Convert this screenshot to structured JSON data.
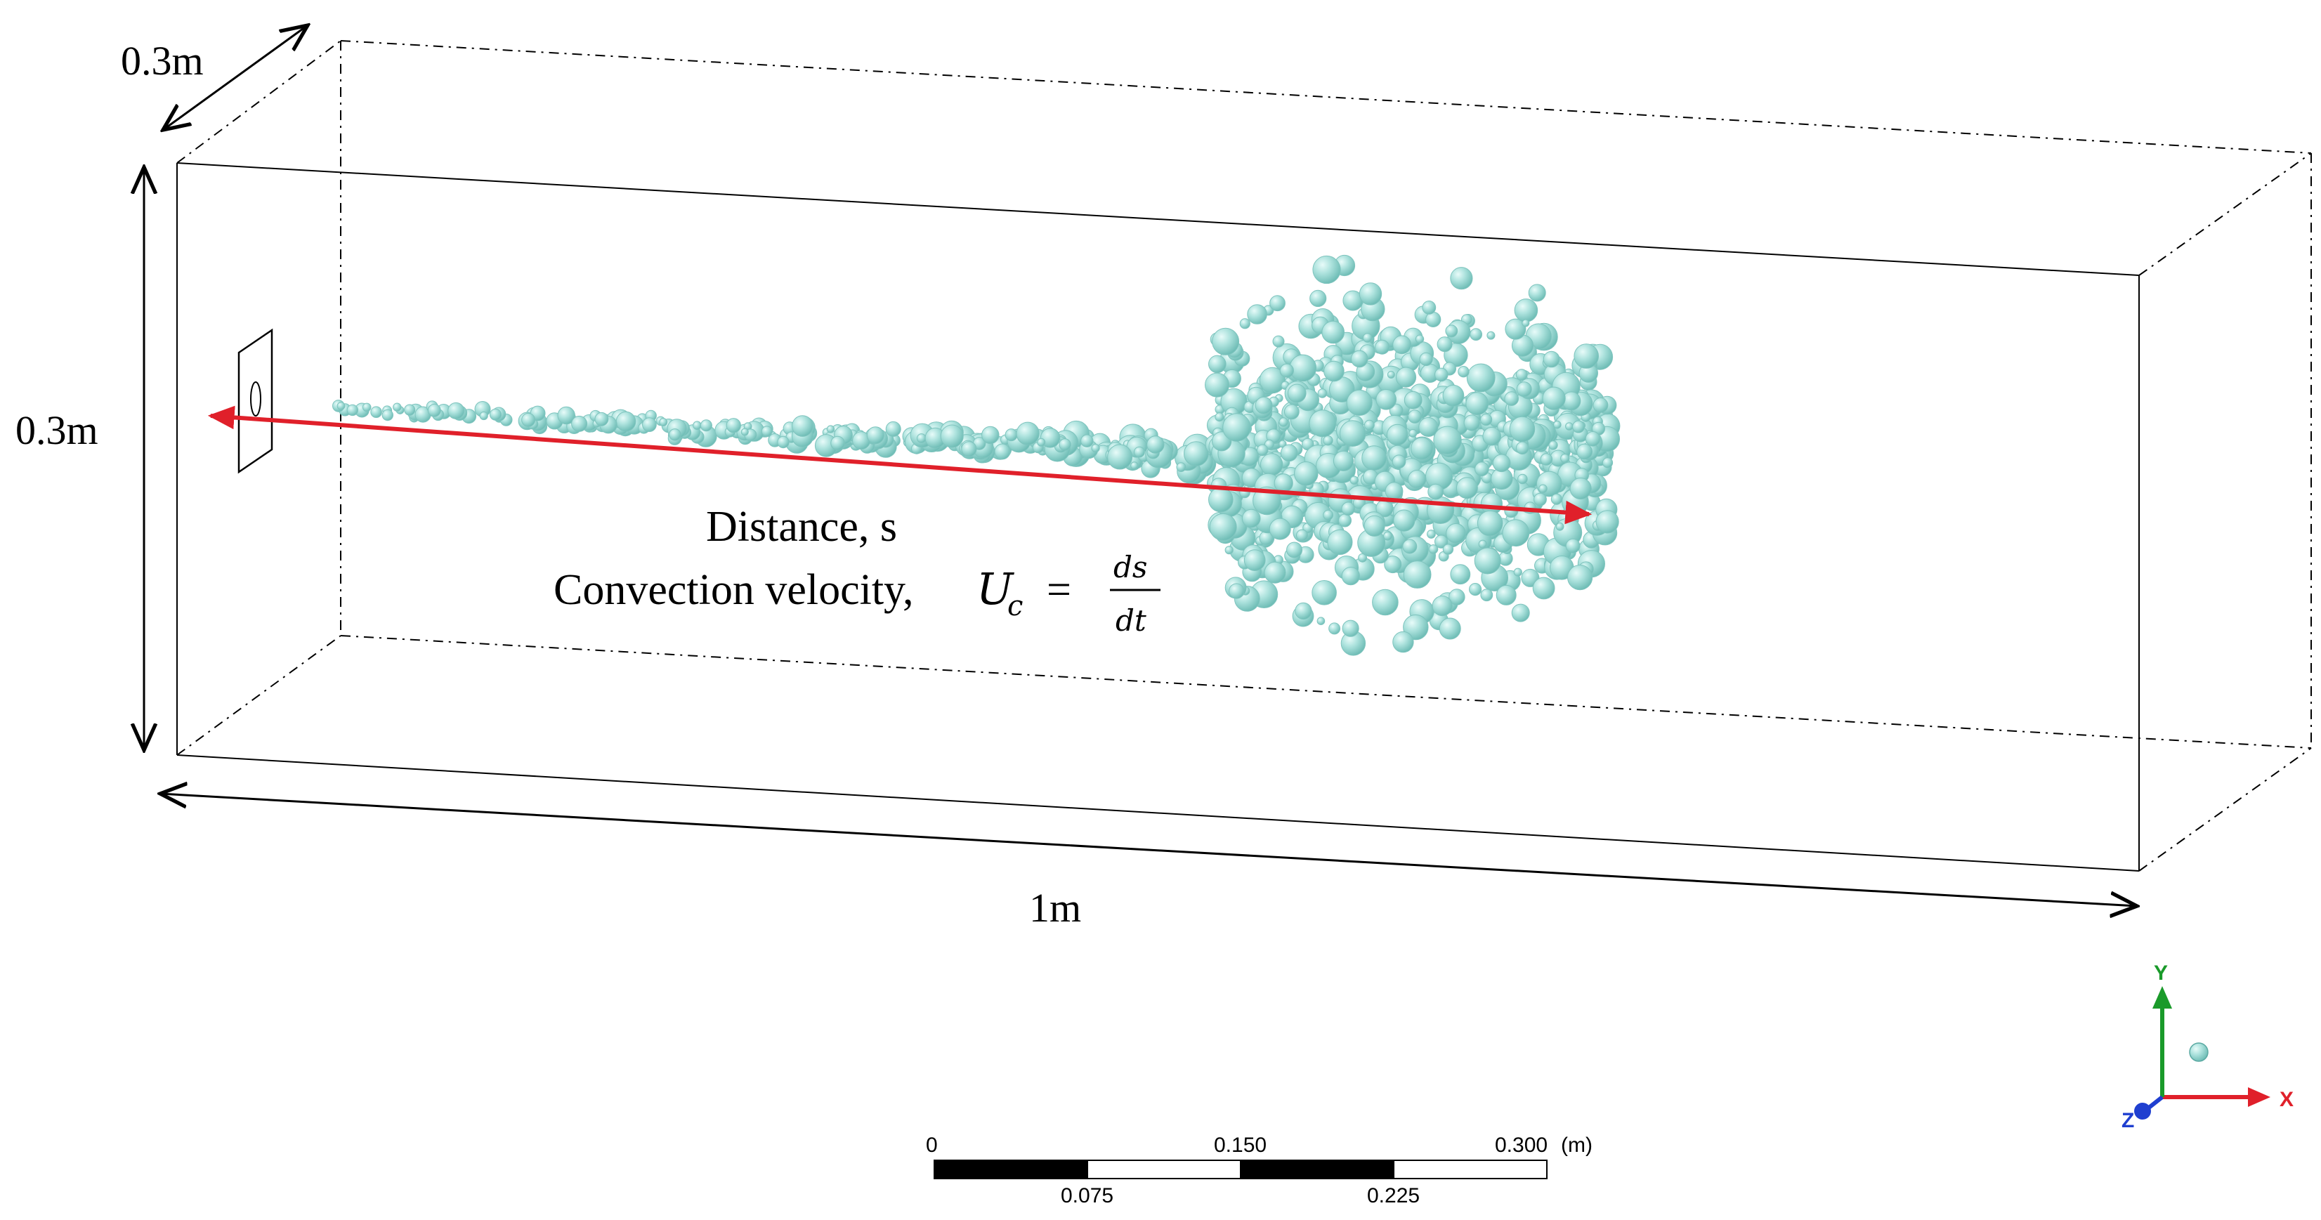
{
  "dimensions": {
    "depth_label": "0.3m",
    "height_label": "0.3m",
    "length_label": "1m"
  },
  "annotation": {
    "distance_label": "Distance, s",
    "velocity_prefix": "Convection velocity, ",
    "velocity_symbol": "U",
    "velocity_subscript": "c",
    "equals": "=",
    "fraction_numerator": "ds",
    "fraction_denominator": "dt"
  },
  "scale_bar": {
    "top_labels": [
      "0",
      "0.150",
      "0.300"
    ],
    "unit": "(m)",
    "bottom_labels": [
      "0.075",
      "0.225"
    ]
  },
  "axes": {
    "x_label": "X",
    "y_label": "Y",
    "z_label": "Z",
    "x_color": "#e0202a",
    "y_color": "#1a9a2a",
    "z_color": "#1f3fd0"
  },
  "colors": {
    "bubble_fill": "#9fd9d4",
    "bubble_stroke": "#6fb9b3",
    "trajectory_arrow": "#e0202a"
  }
}
